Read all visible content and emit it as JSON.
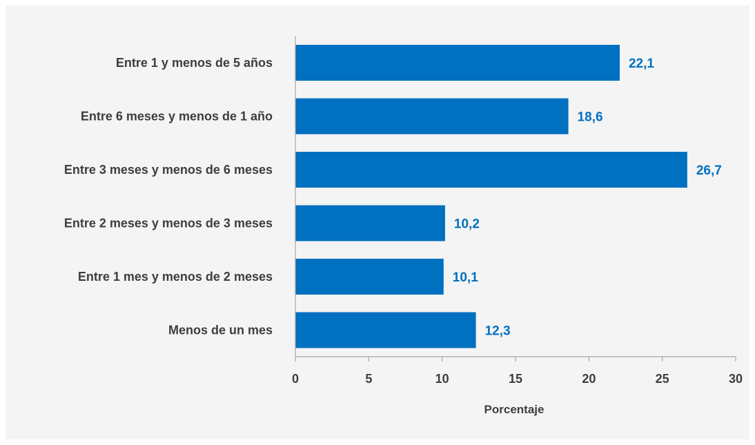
{
  "chart_data": {
    "type": "bar",
    "orientation": "horizontal",
    "categories": [
      "Entre 1 y menos de 5 años",
      "Entre 6 meses y menos de 1 año",
      "Entre 3 meses y menos de 6 meses",
      "Entre 2 meses y menos de 3 meses",
      "Entre 1 mes y menos de 2 meses",
      "Menos de un mes"
    ],
    "values": [
      22.1,
      18.6,
      26.7,
      10.2,
      10.1,
      12.3
    ],
    "value_labels": [
      "22,1",
      "18,6",
      "26,7",
      "10,2",
      "10,1",
      "12,3"
    ],
    "xlabel": "Porcentaje",
    "ylabel": "",
    "xlim": [
      0,
      30
    ],
    "xticks": [
      0,
      5,
      10,
      15,
      20,
      25,
      30
    ],
    "grid": false,
    "colors": {
      "bar": "#0070c0",
      "value_label": "#0070c0",
      "panel": "#f4f4f4",
      "axis": "#a6a6a6",
      "text": "#3d3d3d"
    }
  }
}
